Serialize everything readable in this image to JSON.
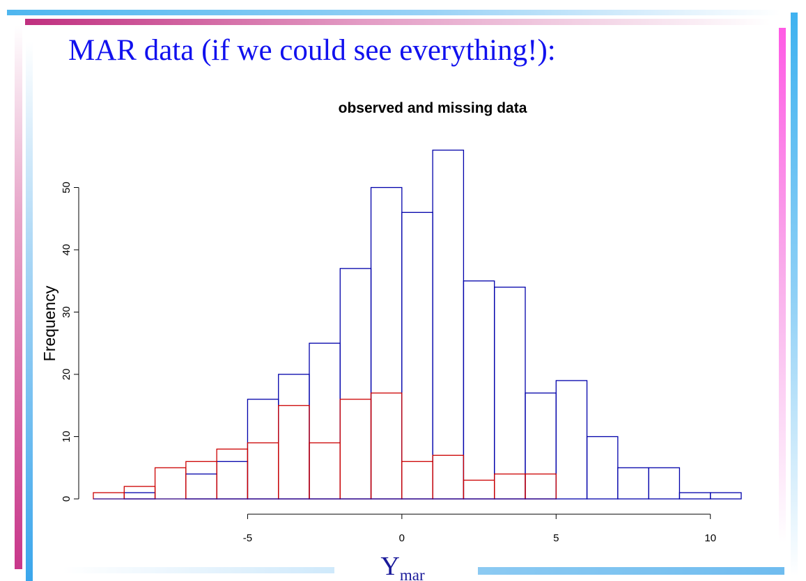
{
  "slide": {
    "title": "MAR data (if we could see everything!):"
  },
  "chart_data": {
    "type": "bar",
    "subtype": "overlaid-histogram",
    "title": "observed and missing data",
    "xlabel": "Y",
    "xlabel_subscript": "mar",
    "ylabel": "Frequency",
    "xlim": [
      -10,
      11
    ],
    "ylim": [
      0,
      56
    ],
    "bin_width": 1,
    "bin_starts": [
      -10,
      -9,
      -8,
      -7,
      -6,
      -5,
      -4,
      -3,
      -2,
      -1,
      0,
      1,
      2,
      3,
      4,
      5,
      6,
      7,
      8,
      9,
      10
    ],
    "series": [
      {
        "color": "#0000aa",
        "values": [
          0,
          1,
          0,
          4,
          6,
          16,
          20,
          25,
          37,
          50,
          46,
          56,
          35,
          34,
          17,
          19,
          10,
          5,
          5,
          1,
          1
        ]
      },
      {
        "color": "#cc0000",
        "values": [
          1,
          2,
          5,
          6,
          8,
          9,
          15,
          9,
          16,
          17,
          6,
          7,
          3,
          4,
          4,
          0,
          0,
          0,
          0,
          0,
          0
        ]
      }
    ],
    "x_ticks": [
      -5,
      0,
      5,
      10
    ],
    "y_ticks": [
      0,
      10,
      20,
      30,
      40,
      50
    ],
    "grid": false,
    "legend": "none"
  }
}
